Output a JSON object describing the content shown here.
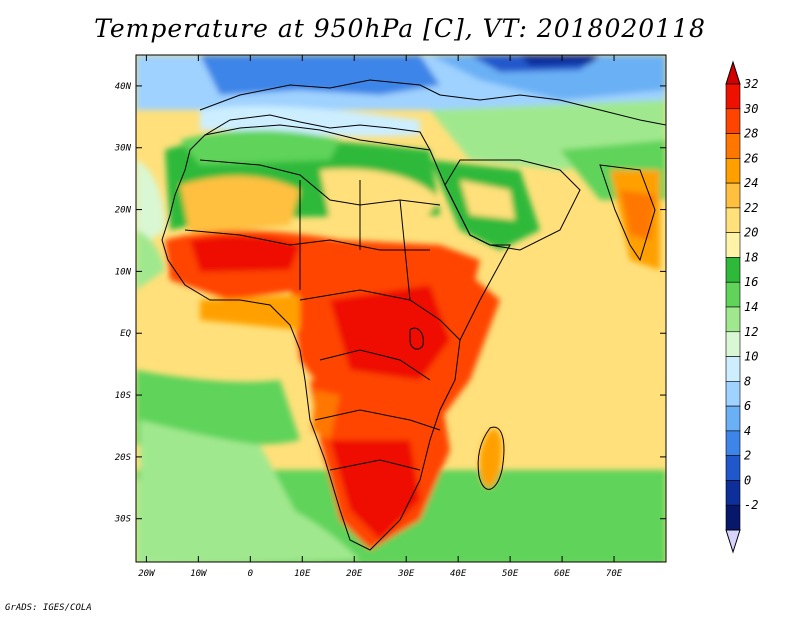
{
  "title": "Temperature at 950hPa [C], VT: 2018020118",
  "credit": "GrADS: IGES/COLA",
  "map": {
    "lat_labels": [
      "40N",
      "30N",
      "20N",
      "10N",
      "EQ",
      "10S",
      "20S",
      "30S"
    ],
    "lat_values": [
      40,
      30,
      20,
      10,
      0,
      -10,
      -20,
      -30
    ],
    "lon_labels": [
      "20W",
      "10W",
      "0",
      "10E",
      "20E",
      "30E",
      "40E",
      "50E",
      "60E",
      "70E"
    ],
    "lon_values": [
      -20,
      -10,
      0,
      10,
      20,
      30,
      40,
      50,
      60,
      70
    ],
    "lon_range": [
      -22,
      80
    ],
    "lat_range": [
      -37,
      45
    ]
  },
  "colorbar": {
    "labels": [
      "32",
      "30",
      "28",
      "26",
      "24",
      "22",
      "20",
      "18",
      "16",
      "14",
      "12",
      "10",
      "8",
      "6",
      "4",
      "2",
      "0",
      "-2"
    ],
    "colors": [
      "#ee1100",
      "#ff4400",
      "#ff7700",
      "#ffa000",
      "#ffc040",
      "#ffe07a",
      "#fff3a8",
      "#2fb93a",
      "#5fd35a",
      "#a0e88e",
      "#d9f7d2",
      "#cceeff",
      "#9fd2ff",
      "#6ab0f5",
      "#3d85e8",
      "#2058cc",
      "#0c2f9a",
      "#07176a"
    ],
    "top_arrow_color": "#d40000",
    "bottom_arrow_color": "#d8d4ff"
  }
}
